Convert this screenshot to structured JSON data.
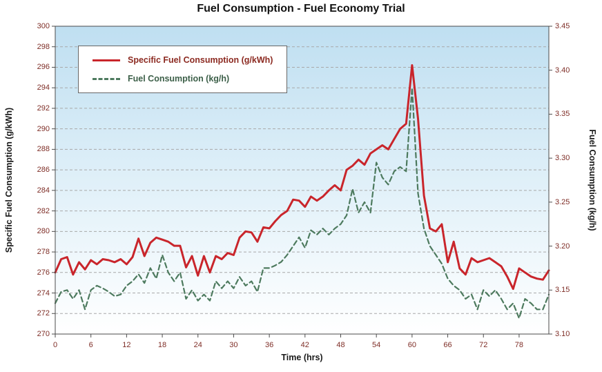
{
  "title_color": "#111111",
  "colors": {
    "series_red": "#c9252b",
    "series_green": "#4d7a5e",
    "tick_label": "#7e2d26",
    "gridline": "#a8a8a8",
    "axis_line": "#4a4a4a",
    "plot_gradient_top": "#bfdff1",
    "plot_gradient_mid": "#e6f3fa",
    "plot_gradient_bottom": "#ffffff"
  },
  "legend": {
    "entries": [
      {
        "label": "Specific Fuel Consumption (g/kWh)",
        "color": "#c9252b",
        "text_color": "#8c2a21",
        "style": "solid"
      },
      {
        "label": "Fuel Consumption (kg/h)",
        "color": "#4d7a5e",
        "text_color": "#3c5f48",
        "style": "dashed"
      }
    ]
  },
  "axes": {
    "x": {
      "min": 0,
      "max": 83,
      "ticks": [
        0,
        6,
        12,
        18,
        24,
        30,
        36,
        42,
        48,
        54,
        60,
        66,
        72,
        78
      ],
      "tick_labels": [
        "0",
        "6",
        "12",
        "18",
        "24",
        "30",
        "36",
        "42",
        "48",
        "54",
        "60",
        "66",
        "72",
        "78"
      ]
    },
    "y_left": {
      "min": 270,
      "max": 300,
      "ticks": [
        270,
        272,
        274,
        276,
        278,
        280,
        282,
        284,
        286,
        288,
        290,
        292,
        294,
        296,
        298,
        300
      ],
      "tick_labels": [
        "270",
        "272",
        "274",
        "276",
        "278",
        "280",
        "282",
        "284",
        "286",
        "288",
        "290",
        "292",
        "294",
        "296",
        "298",
        "300"
      ]
    },
    "y_right": {
      "min": 3.1,
      "max": 3.45,
      "ticks": [
        3.1,
        3.15,
        3.2,
        3.25,
        3.3,
        3.35,
        3.4,
        3.45
      ],
      "tick_labels": [
        "3.10",
        "3.15",
        "3.20",
        "3.25",
        "3.30",
        "3.35",
        "3.40",
        "3.45"
      ]
    }
  },
  "chart_data": {
    "type": "line",
    "title": "Fuel Consumption - Fuel Economy Trial",
    "xlabel": "Time (hrs)",
    "ylabel_left": "Specific Fuel Consumption (g/kWh)",
    "ylabel_right": "Fuel Consumption (kg/h)",
    "xlim": [
      0,
      83
    ],
    "ylim_left": [
      270,
      300
    ],
    "ylim_right": [
      3.1,
      3.45
    ],
    "grid": true,
    "legend_position": "top-left",
    "x": [
      0,
      1,
      2,
      3,
      4,
      5,
      6,
      7,
      8,
      9,
      10,
      11,
      12,
      13,
      14,
      15,
      16,
      17,
      18,
      19,
      20,
      21,
      22,
      23,
      24,
      25,
      26,
      27,
      28,
      29,
      30,
      31,
      32,
      33,
      34,
      35,
      36,
      37,
      38,
      39,
      40,
      41,
      42,
      43,
      44,
      45,
      46,
      47,
      48,
      49,
      50,
      51,
      52,
      53,
      54,
      55,
      56,
      57,
      58,
      59,
      60,
      61,
      62,
      63,
      64,
      65,
      66,
      67,
      68,
      69,
      70,
      71,
      72,
      73,
      74,
      75,
      76,
      77,
      78,
      79,
      80,
      81,
      82,
      83
    ],
    "series": [
      {
        "name": "Specific Fuel Consumption (g/kWh)",
        "axis": "left",
        "color": "#c9252b",
        "style": "solid",
        "width": 3,
        "values": [
          276.0,
          277.3,
          277.5,
          275.8,
          277.0,
          276.3,
          277.2,
          276.8,
          277.3,
          277.2,
          277.0,
          277.3,
          276.8,
          277.5,
          279.3,
          277.6,
          278.9,
          279.4,
          279.2,
          279.0,
          278.6,
          278.6,
          276.5,
          277.6,
          275.7,
          277.6,
          276.0,
          277.6,
          277.3,
          277.9,
          277.7,
          279.4,
          280.0,
          279.9,
          279.0,
          280.4,
          280.3,
          281.0,
          281.6,
          282.0,
          283.1,
          283.0,
          282.4,
          283.4,
          283.0,
          283.4,
          284.0,
          284.5,
          284.0,
          286.0,
          286.4,
          287.0,
          286.5,
          287.6,
          288.0,
          288.4,
          288.0,
          289.0,
          290.0,
          290.5,
          296.2,
          291.0,
          283.5,
          280.3,
          280.0,
          280.7,
          277.0,
          279.0,
          276.4,
          275.8,
          277.4,
          277.0,
          277.2,
          277.4,
          277.0,
          276.6,
          275.6,
          274.4,
          276.4,
          276.0,
          275.6,
          275.4,
          275.3,
          276.2
        ]
      },
      {
        "name": "Fuel Consumption (kg/h)",
        "axis": "right",
        "color": "#4d7a5e",
        "style": "dashed",
        "width": 2.2,
        "values": [
          3.135,
          3.148,
          3.15,
          3.14,
          3.15,
          3.128,
          3.15,
          3.155,
          3.152,
          3.148,
          3.143,
          3.145,
          3.155,
          3.16,
          3.168,
          3.158,
          3.175,
          3.163,
          3.19,
          3.17,
          3.16,
          3.17,
          3.14,
          3.15,
          3.138,
          3.145,
          3.138,
          3.16,
          3.152,
          3.16,
          3.152,
          3.165,
          3.155,
          3.16,
          3.148,
          3.175,
          3.175,
          3.178,
          3.182,
          3.19,
          3.2,
          3.21,
          3.198,
          3.218,
          3.213,
          3.22,
          3.213,
          3.22,
          3.225,
          3.235,
          3.265,
          3.238,
          3.25,
          3.238,
          3.295,
          3.278,
          3.27,
          3.285,
          3.29,
          3.285,
          3.38,
          3.26,
          3.22,
          3.2,
          3.19,
          3.18,
          3.163,
          3.155,
          3.15,
          3.14,
          3.145,
          3.128,
          3.15,
          3.143,
          3.15,
          3.14,
          3.128,
          3.135,
          3.118,
          3.14,
          3.135,
          3.128,
          3.128,
          3.145
        ]
      }
    ]
  }
}
